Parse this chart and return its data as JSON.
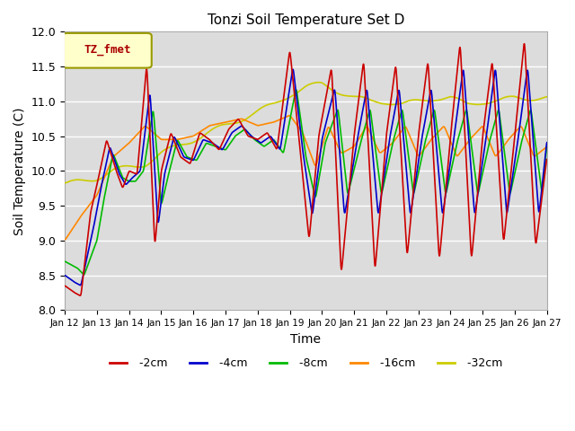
{
  "title": "Tonzi Soil Temperature Set D",
  "xlabel": "Time",
  "ylabel": "Soil Temperature (C)",
  "ylim": [
    8.0,
    12.0
  ],
  "xlim": [
    0,
    15
  ],
  "bg_color": "#dcdcdc",
  "legend_label": "TZ_fmet",
  "xtick_labels": [
    "Jan 12",
    "Jan 13",
    "Jan 14",
    "Jan 15",
    "Jan 16",
    "Jan 17",
    "Jan 18",
    "Jan 19",
    "Jan 20",
    "Jan 21",
    "Jan 22",
    "Jan 23",
    "Jan 24",
    "Jan 25",
    "Jan 26",
    "Jan 27"
  ],
  "colors": {
    "-2cm": "#cc0000",
    "-4cm": "#0000cc",
    "-8cm": "#00bb00",
    "-16cm": "#ff8800",
    "-32cm": "#cccc00"
  },
  "line_width": 1.2
}
